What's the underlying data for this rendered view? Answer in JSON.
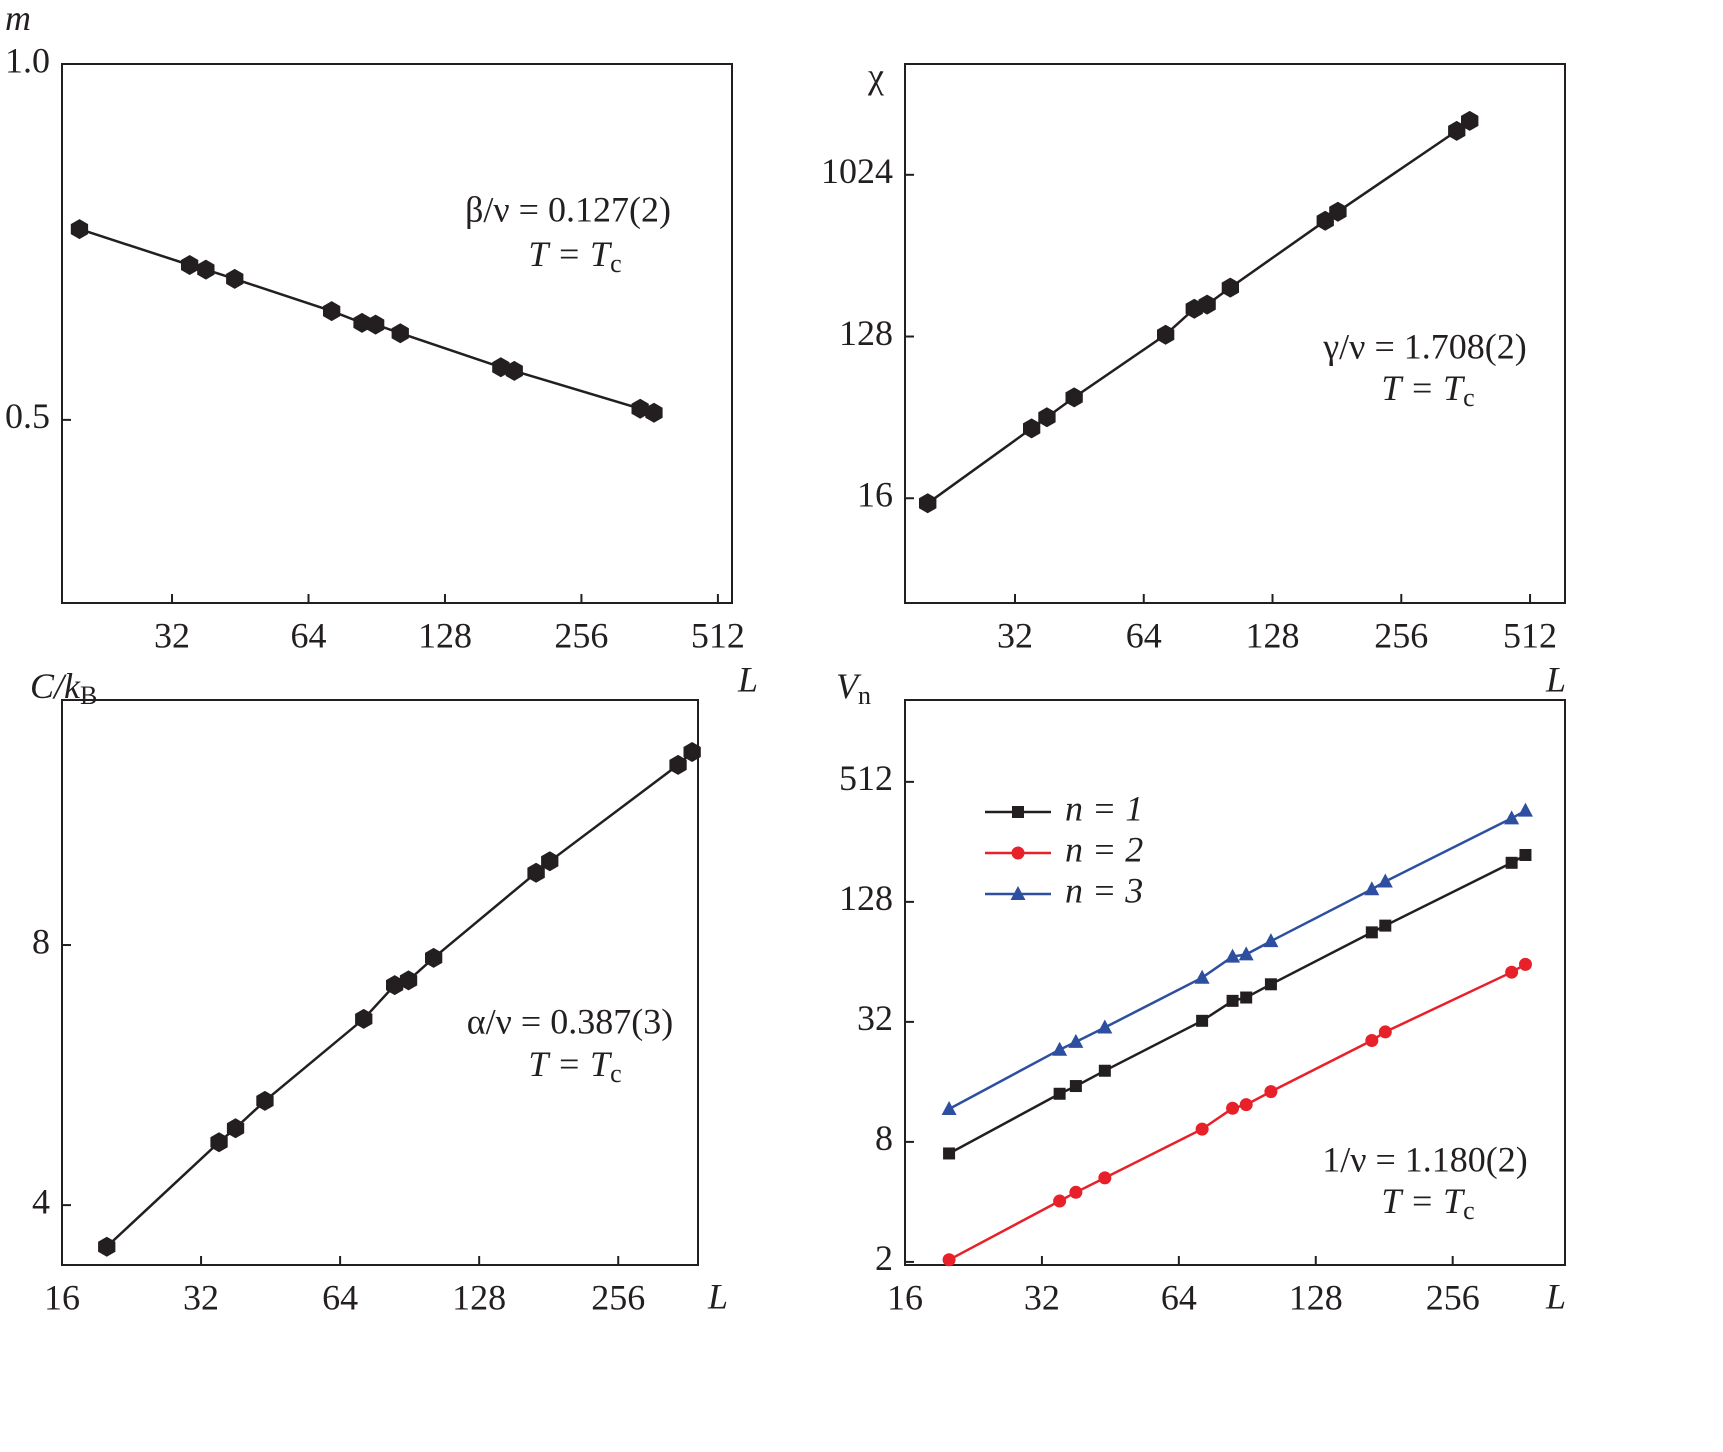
{
  "chart_data": [
    {
      "type": "line",
      "log_x": true,
      "log_y": true,
      "y_label": "m",
      "x_label": "L",
      "annotation": "β/ν = 0.127(2)",
      "annotation_2": "T = T",
      "annotation_2_sub": "c",
      "x": [
        20,
        35,
        38,
        44,
        72,
        84,
        90,
        102,
        170,
        182,
        345,
        370
      ],
      "series": [
        {
          "color": "#231f20",
          "marker": "hexagon",
          "values": [
            0.725,
            0.676,
            0.67,
            0.658,
            0.618,
            0.604,
            0.602,
            0.592,
            0.554,
            0.55,
            0.511,
            0.507
          ]
        }
      ],
      "xlim": [
        18.3,
        550
      ],
      "ylim": [
        0.35,
        1.0
      ],
      "xticks": [
        32,
        64,
        128,
        256,
        512
      ],
      "yticks": [
        0.5,
        {
          "value": 1,
          "label": "1.0"
        }
      ]
    },
    {
      "type": "line",
      "log_x": true,
      "log_y": true,
      "y_label": "χ",
      "x_label": "L",
      "annotation": "γ/ν = 1.708(2)",
      "annotation_2": "T = T",
      "annotation_2_sub": "c",
      "x": [
        20,
        35,
        38,
        44,
        72,
        84,
        90,
        102,
        170,
        182,
        345,
        370
      ],
      "series": [
        {
          "color": "#231f20",
          "marker": "hexagon",
          "values": [
            15.0,
            39.3,
            45.3,
            58.5,
            131,
            183,
            193,
            240,
            567,
            637,
            1801,
            2048
          ]
        }
      ],
      "xlim": [
        17.7,
        618
      ],
      "ylim": [
        4.16,
        4257
      ],
      "xticks": [
        32,
        64,
        128,
        256,
        512
      ],
      "yticks": [
        16,
        128,
        1024
      ]
    },
    {
      "type": "line",
      "log_x": true,
      "log_y": true,
      "y_label": "C/k",
      "y_label_sub": "B",
      "x_label": "L",
      "annotation": "α/ν = 0.387(3)",
      "annotation_2": "T = T",
      "annotation_2_sub": "c",
      "x": [
        20,
        35,
        38,
        44,
        72,
        84,
        90,
        102,
        170,
        182,
        345,
        370
      ],
      "series": [
        {
          "color": "#231f20",
          "marker": "hexagon",
          "values": [
            3.58,
            4.73,
            4.91,
            5.28,
            6.57,
            7.19,
            7.28,
            7.73,
            9.7,
            10.0,
            12.93,
            13.38
          ]
        }
      ],
      "xlim": [
        16,
        381
      ],
      "ylim": [
        3.41,
        15.37
      ],
      "xticks": [
        16,
        32,
        64,
        128,
        256
      ],
      "yticks": [
        4,
        8
      ]
    },
    {
      "type": "line",
      "log_x": true,
      "log_y": true,
      "y_label": "V",
      "y_label_sub": "n",
      "x_label": "L",
      "annotation": "1/ν = 1.180(2)",
      "annotation_2": "T = T",
      "annotation_2_sub": "c",
      "x": [
        20,
        35,
        38,
        44,
        72,
        84,
        90,
        102,
        170,
        182,
        345,
        370
      ],
      "series": [
        {
          "name": "n = 1",
          "color": "#231f20",
          "marker": "square",
          "values": [
            7.0,
            13.95,
            15.25,
            18.2,
            32.4,
            40.8,
            42.4,
            49.4,
            90,
            97.3,
            201,
            220
          ]
        },
        {
          "name": "n = 2",
          "color": "#e8202a",
          "marker": "circle",
          "values": [
            2.05,
            4.04,
            4.47,
            5.28,
            9.27,
            11.8,
            12.3,
            14.3,
            25.8,
            28.5,
            56.8,
            62.2
          ]
        },
        {
          "name": "n = 3",
          "color": "#2e4fa0",
          "marker": "triangle",
          "values": [
            11.7,
            23.2,
            25.4,
            30.0,
            53.3,
            68.0,
            69.8,
            81.3,
            148,
            162,
            336,
            367
          ]
        }
      ],
      "xlim": [
        16,
        452
      ],
      "ylim": [
        1.93,
        1318
      ],
      "xticks": [
        16,
        32,
        64,
        128,
        256
      ],
      "yticks": [
        2,
        8,
        32,
        128,
        512
      ]
    }
  ]
}
